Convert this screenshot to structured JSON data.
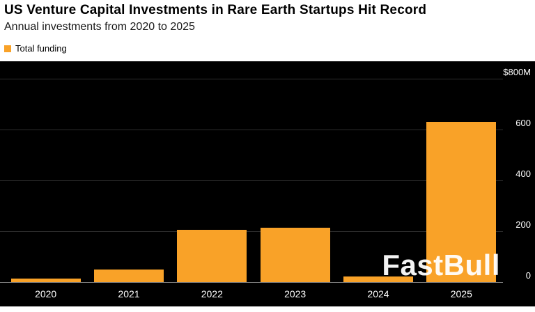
{
  "header": {
    "title": "US Venture Capital Investments in Rare Earth Startups Hit Record",
    "subtitle": "Annual investments from 2020 to 2025",
    "legend_label": "Total funding"
  },
  "watermark": "FastBull",
  "colors": {
    "bar": "#F9A228",
    "chart_background": "#000000",
    "page_background": "#ffffff",
    "gridline": "#2e2e2e",
    "axis_line": "#8a8a8a",
    "tick_text": "#ffffff"
  },
  "chart_data": {
    "type": "bar",
    "title": "US Venture Capital Investments in Rare Earth Startups Hit Record",
    "subtitle": "Annual investments from 2020 to 2025",
    "legend": [
      "Total funding"
    ],
    "legend_position": "top-left",
    "categories": [
      "2020",
      "2021",
      "2022",
      "2023",
      "2024",
      "2025"
    ],
    "values": [
      15,
      50,
      205,
      215,
      22,
      630
    ],
    "series_name": "Total funding",
    "xlabel": "",
    "ylabel": "",
    "ylim": [
      0,
      800
    ],
    "unit": "$M",
    "grid": true,
    "yticks": [
      {
        "value": 0,
        "label": "0"
      },
      {
        "value": 200,
        "label": "200"
      },
      {
        "value": 400,
        "label": "400"
      },
      {
        "value": 600,
        "label": "600"
      },
      {
        "value": 800,
        "label": "$800M"
      }
    ]
  }
}
